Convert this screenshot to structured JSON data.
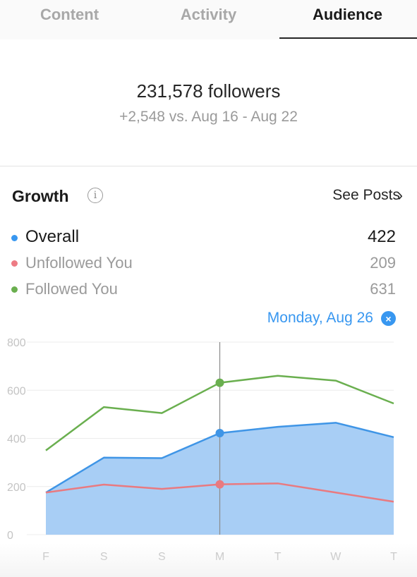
{
  "tabs": [
    {
      "label": "Content",
      "active": false
    },
    {
      "label": "Activity",
      "active": false
    },
    {
      "label": "Audience",
      "active": true
    }
  ],
  "summary": {
    "followers_text": "231,578 followers",
    "comparison_text": "+2,548 vs. Aug 16 - Aug 22"
  },
  "growth": {
    "title": "Growth",
    "info_icon": "i",
    "see_posts_label": "See Posts",
    "chevron": "›",
    "legend": [
      {
        "label": "Overall",
        "value": "422",
        "color": "#3897f0"
      },
      {
        "label": "Unfollowed You",
        "value": "209",
        "color": "#ed4956"
      },
      {
        "label": "Followed You",
        "value": "631",
        "color": "#58a846"
      }
    ],
    "selected_date": "Monday, Aug 26",
    "clear_icon": "×"
  },
  "chart_data": {
    "type": "area",
    "x": [
      "F",
      "S",
      "S",
      "M",
      "T",
      "W",
      "T"
    ],
    "yticks": [
      0,
      200,
      400,
      600,
      800
    ],
    "ylim": [
      0,
      800
    ],
    "grid": true,
    "selected_index": 3,
    "series": [
      {
        "name": "Followed You",
        "color": "#6aaf4f",
        "fill": false,
        "values": [
          350,
          530,
          505,
          631,
          660,
          640,
          545
        ]
      },
      {
        "name": "Overall",
        "color": "#3f95e6",
        "fill": true,
        "fill_color": "#a8cef5",
        "values": [
          175,
          320,
          318,
          422,
          448,
          465,
          405
        ]
      },
      {
        "name": "Unfollowed You",
        "color": "#e97a80",
        "fill": false,
        "values": [
          175,
          208,
          190,
          209,
          213,
          175,
          137
        ]
      }
    ]
  }
}
